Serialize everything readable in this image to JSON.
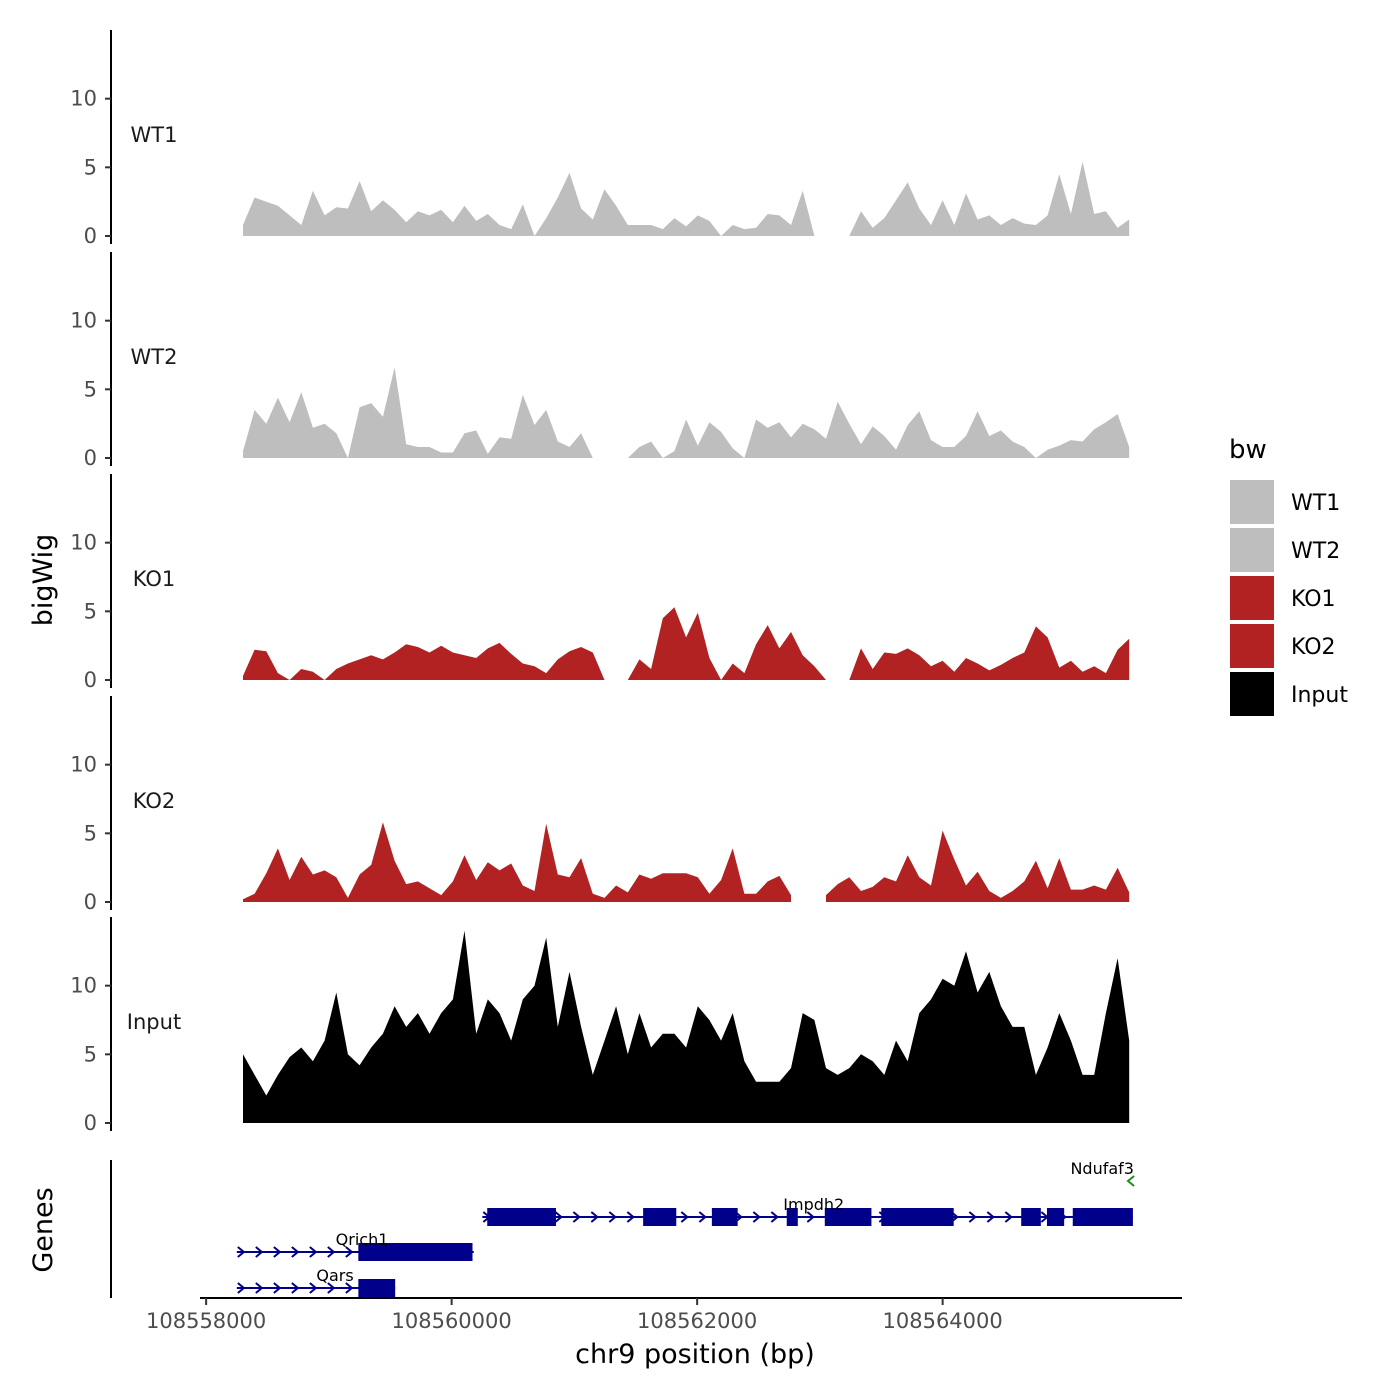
{
  "chart_data": {
    "type": "area",
    "xlabel": "chr9 position (bp)",
    "ylabel": "bigWig",
    "genes_axis_label": "Genes",
    "xlim": [
      108557950,
      108565950
    ],
    "x_ticks": [
      108558000,
      108560000,
      108562000,
      108564000
    ],
    "x_tick_labels": [
      "108558000",
      "108560000",
      "108562000",
      "108564000"
    ],
    "ylim": [
      0,
      15
    ],
    "y_ticks": [
      0,
      5,
      10
    ],
    "y_tick_labels": [
      "0",
      "5",
      "10"
    ],
    "x": [
      108558300,
      108558395,
      108558490,
      108558585,
      108558680,
      108558775,
      108558870,
      108558965,
      108559060,
      108559155,
      108559250,
      108559345,
      108559440,
      108559535,
      108559630,
      108559725,
      108559820,
      108559915,
      108560010,
      108560105,
      108560200,
      108560295,
      108560390,
      108560485,
      108560580,
      108560675,
      108560770,
      108560865,
      108560960,
      108561055,
      108561150,
      108561245,
      108561340,
      108561435,
      108561530,
      108561625,
      108561720,
      108561815,
      108561910,
      108562005,
      108562100,
      108562195,
      108562290,
      108562385,
      108562480,
      108562575,
      108562670,
      108562765,
      108562860,
      108562955,
      108563050,
      108563145,
      108563240,
      108563335,
      108563430,
      108563525,
      108563620,
      108563715,
      108563810,
      108563905,
      108564000,
      108564095,
      108564190,
      108564285,
      108564380,
      108564475,
      108564570,
      108564665,
      108564760,
      108564855,
      108564950,
      108565045,
      108565140,
      108565235,
      108565330,
      108565425,
      108565520
    ],
    "series": [
      {
        "name": "WT1",
        "color": "#BEBEBE",
        "values": [
          0.8,
          2.8,
          2.5,
          2.2,
          1.5,
          0.8,
          3.3,
          1.5,
          2.1,
          2.0,
          4.0,
          1.8,
          2.6,
          1.9,
          1.0,
          1.8,
          1.5,
          1.9,
          1.0,
          2.2,
          1.1,
          1.6,
          0.8,
          0.5,
          2.3,
          0,
          1.3,
          2.8,
          4.6,
          2.0,
          1.2,
          3.4,
          2.2,
          0.8,
          0.8,
          0.8,
          0.5,
          1.3,
          0.7,
          1.5,
          1.1,
          0,
          0.8,
          0.5,
          0.6,
          1.6,
          1.5,
          0.8,
          3.3,
          0,
          null,
          null,
          0,
          1.8,
          0.6,
          1.3,
          2.6,
          3.9,
          2.0,
          0.8,
          2.6,
          0.8,
          3.1,
          1.2,
          1.5,
          0.8,
          1.3,
          0.9,
          0.8,
          1.5,
          4.5,
          1.6,
          5.4,
          1.6,
          1.8,
          0.6,
          1.2
        ]
      },
      {
        "name": "WT2",
        "color": "#BEBEBE",
        "values": [
          0.5,
          3.5,
          2.5,
          4.4,
          2.6,
          4.8,
          2.2,
          2.5,
          1.8,
          0,
          3.7,
          4.0,
          3.0,
          6.6,
          1.0,
          0.8,
          0.8,
          0.4,
          0.4,
          1.8,
          2.0,
          0.3,
          1.5,
          1.4,
          4.6,
          2.4,
          3.5,
          1.2,
          0.8,
          1.8,
          0,
          null,
          null,
          0,
          0.8,
          1.2,
          0,
          0.5,
          2.8,
          0.9,
          2.6,
          1.9,
          0.7,
          0,
          2.8,
          2.2,
          2.6,
          1.5,
          2.5,
          2.1,
          1.4,
          4.1,
          2.5,
          1.0,
          2.3,
          1.6,
          0.6,
          2.4,
          3.4,
          1.3,
          0.8,
          0.8,
          1.6,
          3.4,
          1.6,
          2.0,
          1.2,
          0.8,
          0,
          0.6,
          0.9,
          1.3,
          1.2,
          2.1,
          2.6,
          3.2,
          0.8
        ]
      },
      {
        "name": "KO1",
        "color": "#B22222",
        "values": [
          0.3,
          2.2,
          2.1,
          0.5,
          0,
          0.8,
          0.6,
          0,
          0.8,
          1.2,
          1.5,
          1.8,
          1.5,
          2.0,
          2.6,
          2.4,
          2.0,
          2.5,
          2.0,
          1.8,
          1.6,
          2.3,
          2.7,
          1.9,
          1.2,
          1.0,
          0.5,
          1.5,
          2.1,
          2.4,
          2.0,
          0,
          null,
          0,
          1.5,
          0.8,
          4.5,
          5.3,
          3.1,
          4.9,
          1.6,
          0,
          1.2,
          0.5,
          2.6,
          4.0,
          2.3,
          3.5,
          1.8,
          1.0,
          0,
          null,
          0,
          2.3,
          0.8,
          2.0,
          1.9,
          2.3,
          1.8,
          1.0,
          1.4,
          0.6,
          1.6,
          1.2,
          0.7,
          1.1,
          1.6,
          2.0,
          3.9,
          3.1,
          0.9,
          1.4,
          0.6,
          1.0,
          0.5,
          2.2,
          3.0
        ]
      },
      {
        "name": "KO2",
        "color": "#B22222",
        "values": [
          0.2,
          0.6,
          2.1,
          3.9,
          1.6,
          3.3,
          2.0,
          2.3,
          1.8,
          0.3,
          2.0,
          2.7,
          5.8,
          3.0,
          1.3,
          1.5,
          1.0,
          0.5,
          1.5,
          3.4,
          1.6,
          2.9,
          2.3,
          2.8,
          1.2,
          0.8,
          5.7,
          2.0,
          1.8,
          3.2,
          0.6,
          0.3,
          1.2,
          0.7,
          2.0,
          1.7,
          2.1,
          2.1,
          2.1,
          1.8,
          0.6,
          1.6,
          3.9,
          0.6,
          0.6,
          1.5,
          1.9,
          0.5,
          null,
          null,
          0.5,
          1.3,
          1.8,
          0.8,
          1.1,
          1.8,
          1.5,
          3.4,
          1.8,
          1.2,
          5.2,
          3.1,
          1.2,
          2.2,
          0.8,
          0.3,
          0.8,
          1.5,
          3.0,
          1.0,
          3.2,
          0.9,
          0.9,
          1.2,
          0.9,
          2.5,
          0.7
        ]
      },
      {
        "name": "Input",
        "color": "#000000",
        "values": [
          5.0,
          3.5,
          2.0,
          3.5,
          4.8,
          5.5,
          4.5,
          6.0,
          9.5,
          5.0,
          4.2,
          5.5,
          6.5,
          8.5,
          7.0,
          8.0,
          6.5,
          8.0,
          9.0,
          14.0,
          6.5,
          9.0,
          8.0,
          6.0,
          9.0,
          10.0,
          13.5,
          7.0,
          11.0,
          7.0,
          3.5,
          6.0,
          8.5,
          5.0,
          8.0,
          5.5,
          6.5,
          6.5,
          5.5,
          8.5,
          7.5,
          6.0,
          8.0,
          4.5,
          3.0,
          3.0,
          3.0,
          4.0,
          8.0,
          7.5,
          4.0,
          3.5,
          4.0,
          5.0,
          4.5,
          3.5,
          6.0,
          4.5,
          8.0,
          9.0,
          10.5,
          10.0,
          12.5,
          9.5,
          11.0,
          8.5,
          7.0,
          7.0,
          3.5,
          5.5,
          8.0,
          6.0,
          3.5,
          3.5,
          8.0,
          12.0,
          6.0
        ]
      }
    ],
    "legend": {
      "title": "bw",
      "position": "right",
      "entries": [
        {
          "label": "WT1",
          "color": "#BEBEBE"
        },
        {
          "label": "WT2",
          "color": "#BEBEBE"
        },
        {
          "label": "KO1",
          "color": "#B22222"
        },
        {
          "label": "KO2",
          "color": "#B22222"
        },
        {
          "label": "Input",
          "color": "#000000"
        }
      ]
    },
    "genes": [
      {
        "name": "Ndufaf3",
        "start": 108565510,
        "end": 108565560,
        "strand": "-",
        "row": 4,
        "color": "#228B22",
        "exons": []
      },
      {
        "name": "Impdh2",
        "start": 108560250,
        "end": 108565550,
        "strand": "+",
        "row": 3,
        "color": "#00008B",
        "exons": [
          [
            108560290,
            108560850
          ],
          [
            108561560,
            108561830
          ],
          [
            108562120,
            108562330
          ],
          [
            108562730,
            108562820
          ],
          [
            108563040,
            108563420
          ],
          [
            108563500,
            108564090
          ],
          [
            108564640,
            108564800
          ],
          [
            108564850,
            108564990
          ],
          [
            108565060,
            108565550
          ]
        ]
      },
      {
        "name": "Qrich1",
        "start": 108558250,
        "end": 108560180,
        "strand": "+",
        "row": 2,
        "color": "#00008B",
        "exons": [
          [
            108559240,
            108560170
          ]
        ]
      },
      {
        "name": "Qars",
        "start": 108558250,
        "end": 108559540,
        "strand": "+",
        "row": 1,
        "color": "#00008B",
        "exons": [
          [
            108559240,
            108559540
          ]
        ]
      }
    ]
  }
}
